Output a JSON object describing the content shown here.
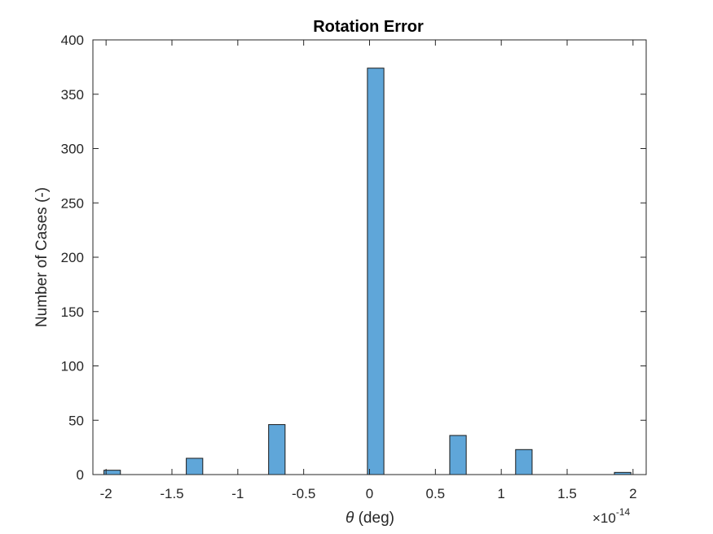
{
  "chart_data": {
    "type": "bar",
    "title": "Rotation Error",
    "xlabel_symbol": "θ",
    "xlabel_text": " (deg)",
    "ylabel": "Number of Cases (-)",
    "x_exponent_base": "×10",
    "x_exponent_power": "-14",
    "xlim": [
      -2.1,
      2.1
    ],
    "ylim": [
      0,
      400
    ],
    "xticks": [
      -2,
      -1.5,
      -1,
      -0.5,
      0,
      0.5,
      1,
      1.5,
      2
    ],
    "xtick_labels": [
      "-2",
      "-1.5",
      "-1",
      "-0.5",
      "0",
      "0.5",
      "1",
      "1.5",
      "2"
    ],
    "yticks": [
      0,
      50,
      100,
      150,
      200,
      250,
      300,
      350,
      400
    ],
    "ytick_labels": [
      "0",
      "50",
      "100",
      "150",
      "200",
      "250",
      "300",
      "350",
      "400"
    ],
    "bin_width": 0.125,
    "bin_centers": [
      -1.9536,
      -1.8286,
      -1.7036,
      -1.5786,
      -1.4536,
      -1.3286,
      -1.2036,
      -1.0786,
      -0.9536,
      -0.8286,
      -0.7036,
      -0.5786,
      -0.4536,
      -0.3286,
      -0.2036,
      -0.0786,
      0.0464,
      0.1714,
      0.2964,
      0.4214,
      0.5464,
      0.6714,
      0.7964,
      0.9214,
      1.0464,
      1.1714,
      1.2964,
      1.4214,
      1.5464,
      1.6714,
      1.7964,
      1.9214
    ],
    "values": [
      4,
      0,
      0,
      0,
      0,
      15,
      0,
      0,
      0,
      0,
      46,
      0,
      0,
      0,
      0,
      0,
      374,
      0,
      0,
      0,
      0,
      36,
      0,
      0,
      0,
      23,
      0,
      0,
      0,
      0,
      0,
      2
    ],
    "bar_color": "#5fa6d9",
    "edge_color": "#1a1a1a",
    "grid": false,
    "box": true
  }
}
